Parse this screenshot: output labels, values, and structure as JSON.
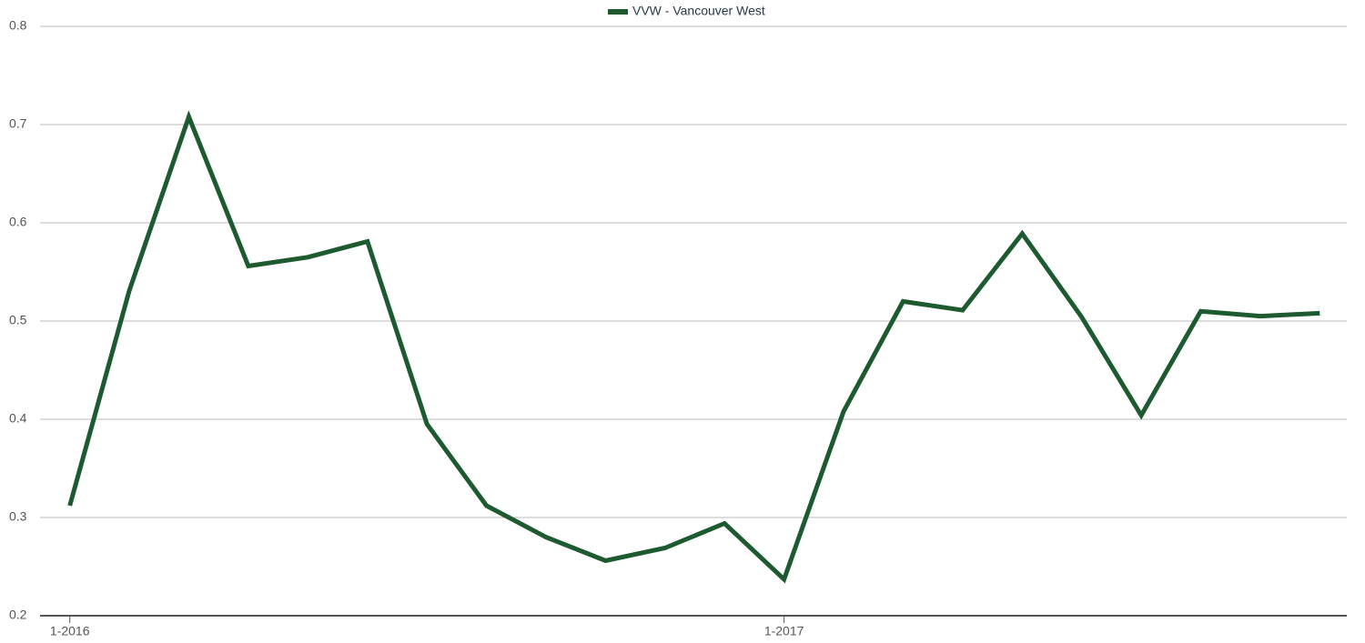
{
  "chart_data": {
    "type": "line",
    "categories": [
      "1-2016",
      null,
      null,
      null,
      null,
      null,
      null,
      null,
      null,
      null,
      null,
      null,
      "1-2017",
      null,
      null,
      null,
      null,
      null,
      null,
      null,
      null,
      null
    ],
    "series": [
      {
        "name": "VVW - Vancouver West",
        "color": "#1d5a2f",
        "values": [
          0.312,
          0.531,
          0.708,
          0.556,
          0.565,
          0.581,
          0.395,
          0.312,
          0.28,
          0.256,
          0.269,
          0.294,
          0.237,
          0.408,
          0.52,
          0.511,
          0.589,
          0.504,
          0.404,
          0.51,
          0.505,
          0.508
        ]
      }
    ],
    "ylim": [
      0.2,
      0.8
    ],
    "yticks": [
      0.2,
      0.3,
      0.4,
      0.5,
      0.6,
      0.7,
      0.8
    ],
    "grid": true,
    "legend": "top"
  }
}
